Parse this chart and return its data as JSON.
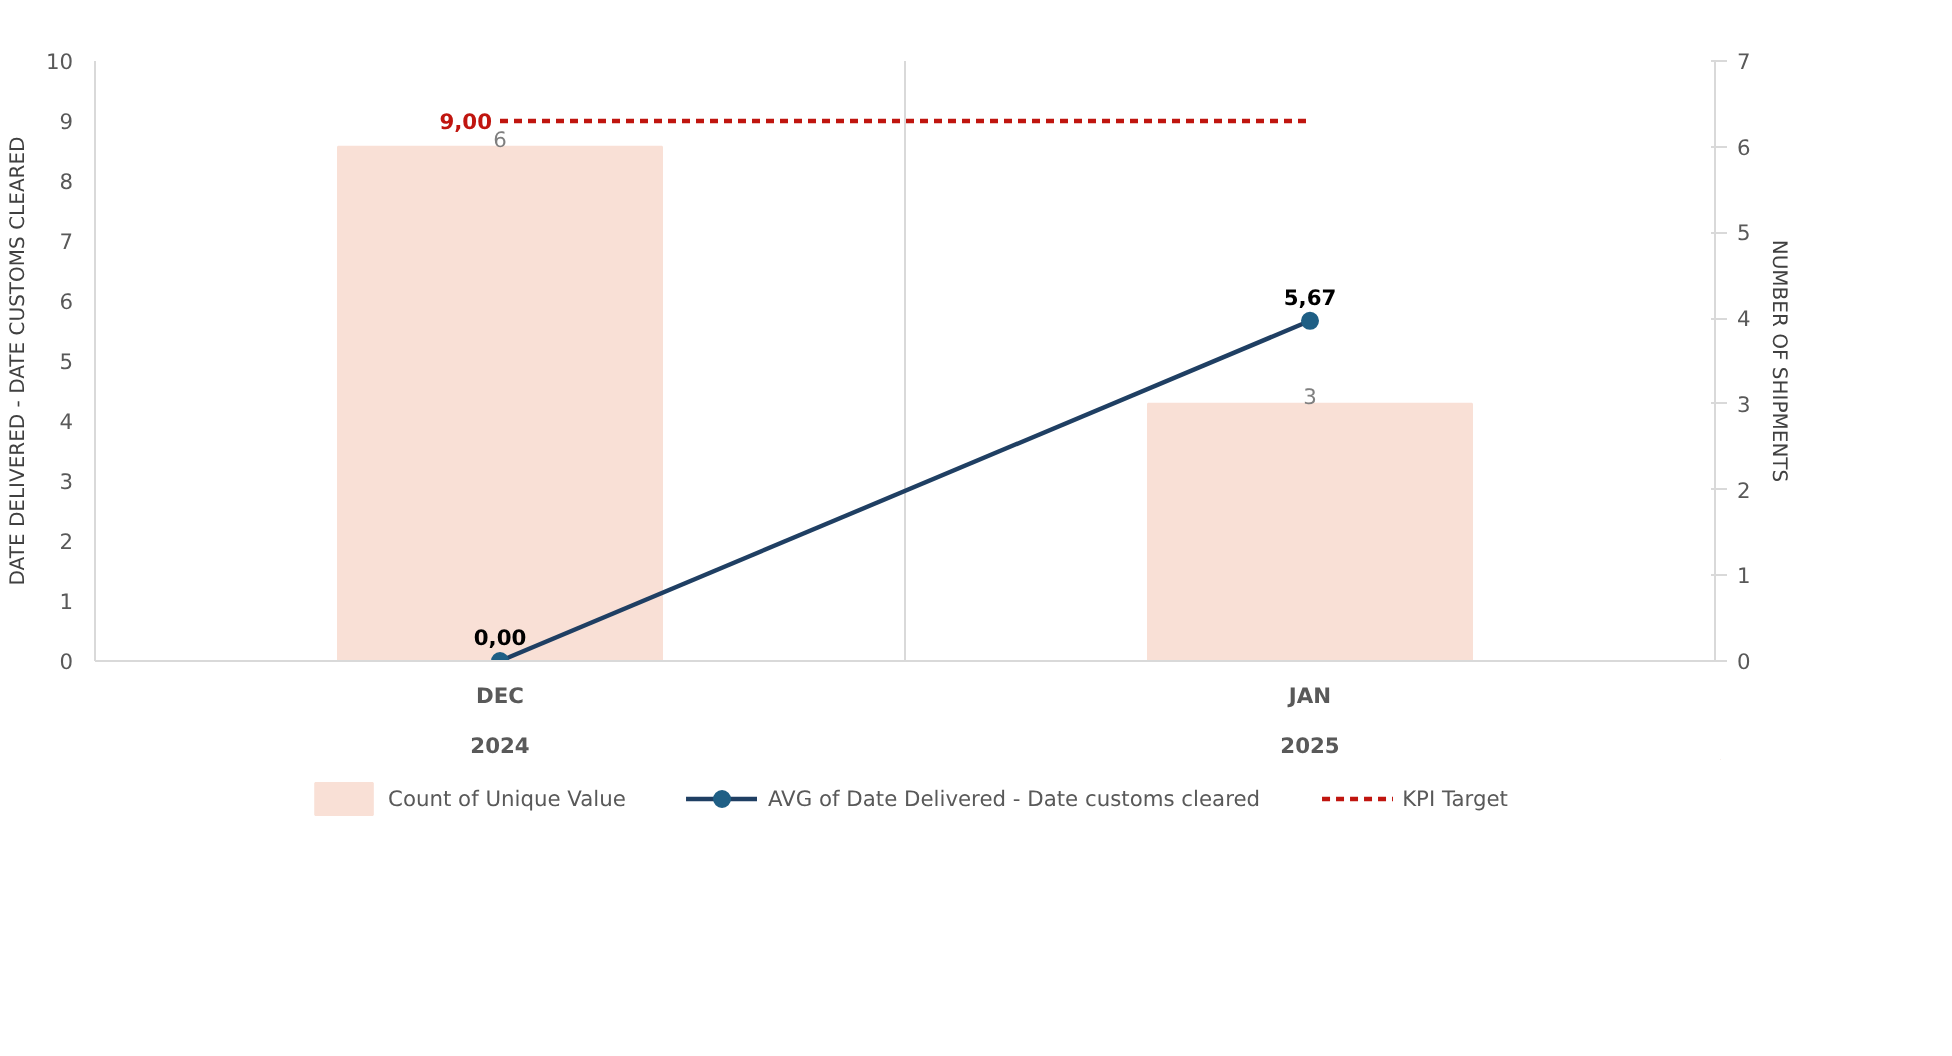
{
  "chart_data": {
    "type": "bar",
    "categories": [
      "DEC\n2024",
      "JAN\n2025"
    ],
    "ylabel": "DATE DELIVERED - DATE CUSTOMS CLEARED",
    "y2label": "NUMBER OF SHIPMENTS",
    "ylim": [
      0,
      10
    ],
    "yticks": [
      0,
      1,
      2,
      3,
      4,
      5,
      6,
      7,
      8,
      9,
      10
    ],
    "y2lim": [
      0,
      7
    ],
    "y2ticks": [
      0,
      1,
      2,
      3,
      4,
      5,
      6,
      7
    ],
    "grid": "x",
    "legend": "bottom",
    "series": [
      {
        "name": "Count of Unique Value",
        "axis": "y2",
        "color": "#f9e0d6",
        "values": [
          6,
          3
        ],
        "value_labels": [
          "6",
          "3"
        ]
      },
      {
        "name": "AVG of Date Delivered - Date customs cleared",
        "type": "line",
        "color": "#1f3f63",
        "marker": "circle",
        "line_style": "solid",
        "values": [
          0.0,
          5.67
        ],
        "value_labels": [
          "0,00",
          "5,67"
        ]
      },
      {
        "name": "KPI Target",
        "type": "line",
        "color": "#c0150f",
        "marker": "none",
        "line_style": "dashed",
        "values": [
          9,
          9
        ],
        "value_labels": [
          "9,00",
          null
        ]
      }
    ]
  }
}
